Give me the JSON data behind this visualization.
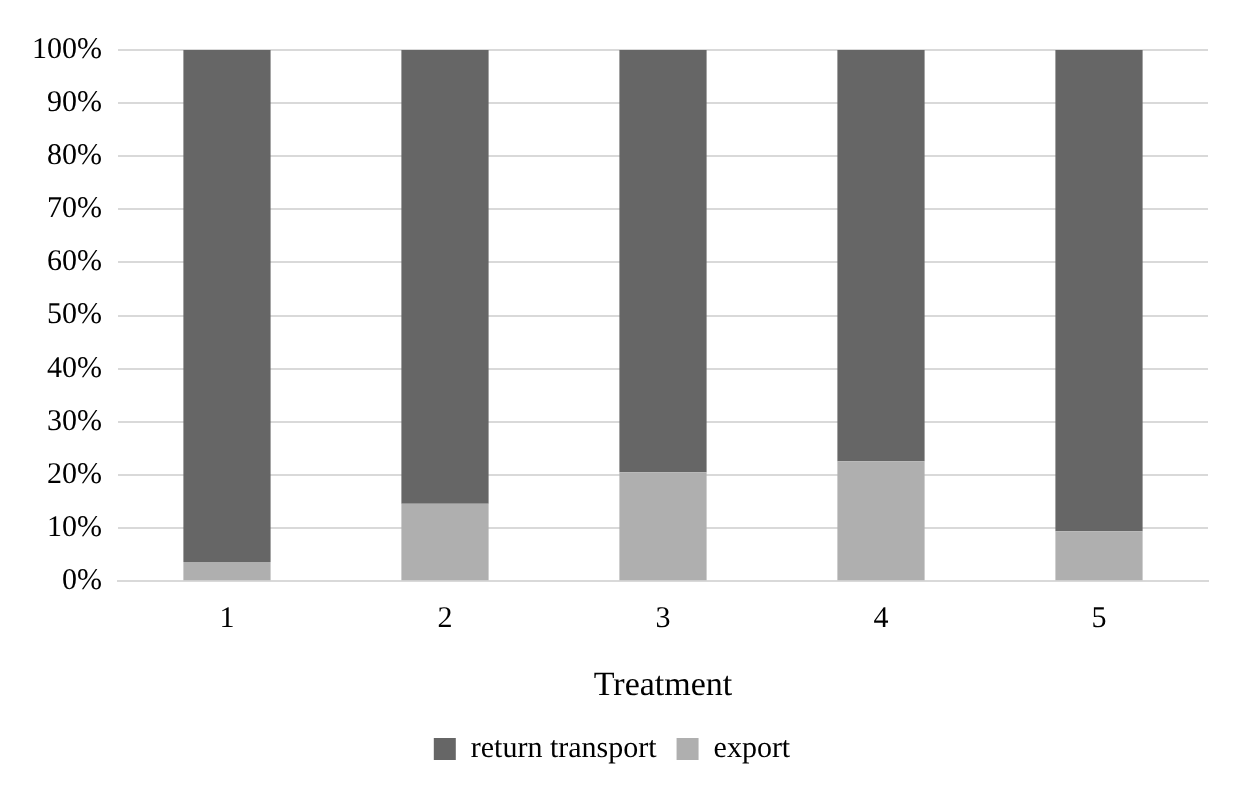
{
  "chart_data": {
    "type": "bar",
    "stacked": true,
    "xlabel": "Treatment",
    "categories": [
      "1",
      "2",
      "3",
      "4",
      "5"
    ],
    "series": [
      {
        "name": "export",
        "color": "#afafaf",
        "values": [
          3.6,
          14.6,
          20.5,
          22.6,
          9.4
        ]
      },
      {
        "name": "return transport",
        "color": "#666666",
        "values": [
          96.4,
          85.4,
          79.5,
          77.4,
          90.6
        ]
      }
    ],
    "ylim": [
      0,
      100
    ],
    "yticks": [
      {
        "value": 0,
        "label": "0%"
      },
      {
        "value": 10,
        "label": "10%"
      },
      {
        "value": 20,
        "label": "20%"
      },
      {
        "value": 30,
        "label": "30%"
      },
      {
        "value": 40,
        "label": "40%"
      },
      {
        "value": 50,
        "label": "50%"
      },
      {
        "value": 60,
        "label": "60%"
      },
      {
        "value": 70,
        "label": "70%"
      },
      {
        "value": 80,
        "label": "80%"
      },
      {
        "value": 90,
        "label": "90%"
      },
      {
        "value": 100,
        "label": "100%"
      }
    ],
    "grid": "y",
    "legend": "bottom"
  }
}
